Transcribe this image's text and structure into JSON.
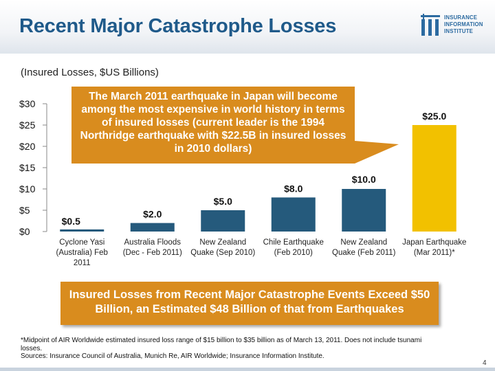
{
  "slide": {
    "title": "Recent Major Catastrophe Losses",
    "subtitle": "(Insured Losses, $US Billions)",
    "page_number": "4"
  },
  "logo": {
    "lines": [
      "INSURANCE",
      "INFORMATION",
      "INSTITUTE"
    ]
  },
  "callout": {
    "text": "The March 2011 earthquake in Japan will become among the most expensive in world history in terms of insured losses (current leader is the 1994 Northridge earthquake with $22.5B in insured losses in 2010 dollars)"
  },
  "banner": {
    "text": "Insured Losses from Recent Major Catastrophe Events Exceed $50 Billion, an Estimated $48 Billion of that from Earthquakes"
  },
  "footnote": {
    "line1": "*Midpoint of AIR Worldwide estimated insured loss range of $15 billion to $35 billion as of March 13, 2011.  Does not include tsunami losses.",
    "line2": "Sources: Insurance Council of Australia, Munich Re, AIR Worldwide; Insurance Information Institute."
  },
  "colors": {
    "title": "#1f5a8a",
    "bar": "#255a7c",
    "highlight_bar": "#f2c100",
    "callout": "#d98c1e"
  },
  "chart_data": {
    "type": "bar",
    "categories": [
      [
        "Cyclone Yasi",
        "(Australia) Feb",
        "2011"
      ],
      [
        "Australia Floods",
        "(Dec - Feb 2011)"
      ],
      [
        "New Zealand",
        "Quake (Sep 2010)"
      ],
      [
        "Chile Earthquake",
        "(Feb 2010)"
      ],
      [
        "New Zealand",
        "Quake (Feb 2011)"
      ],
      [
        "Japan Earthquake",
        "(Mar 2011)*"
      ]
    ],
    "values": [
      0.5,
      2.0,
      5.0,
      8.0,
      10.0,
      25.0
    ],
    "value_labels": [
      "$0.5",
      "$2.0",
      "$5.0",
      "$8.0",
      "$10.0",
      "$25.0"
    ],
    "highlight_index": 5,
    "ylim": [
      0,
      30
    ],
    "yticks": [
      0,
      5,
      10,
      15,
      20,
      25,
      30
    ],
    "ytick_labels": [
      "$0",
      "$5",
      "$10",
      "$15",
      "$20",
      "$25",
      "$30"
    ],
    "ylabel": "",
    "xlabel": "",
    "grid": false
  }
}
